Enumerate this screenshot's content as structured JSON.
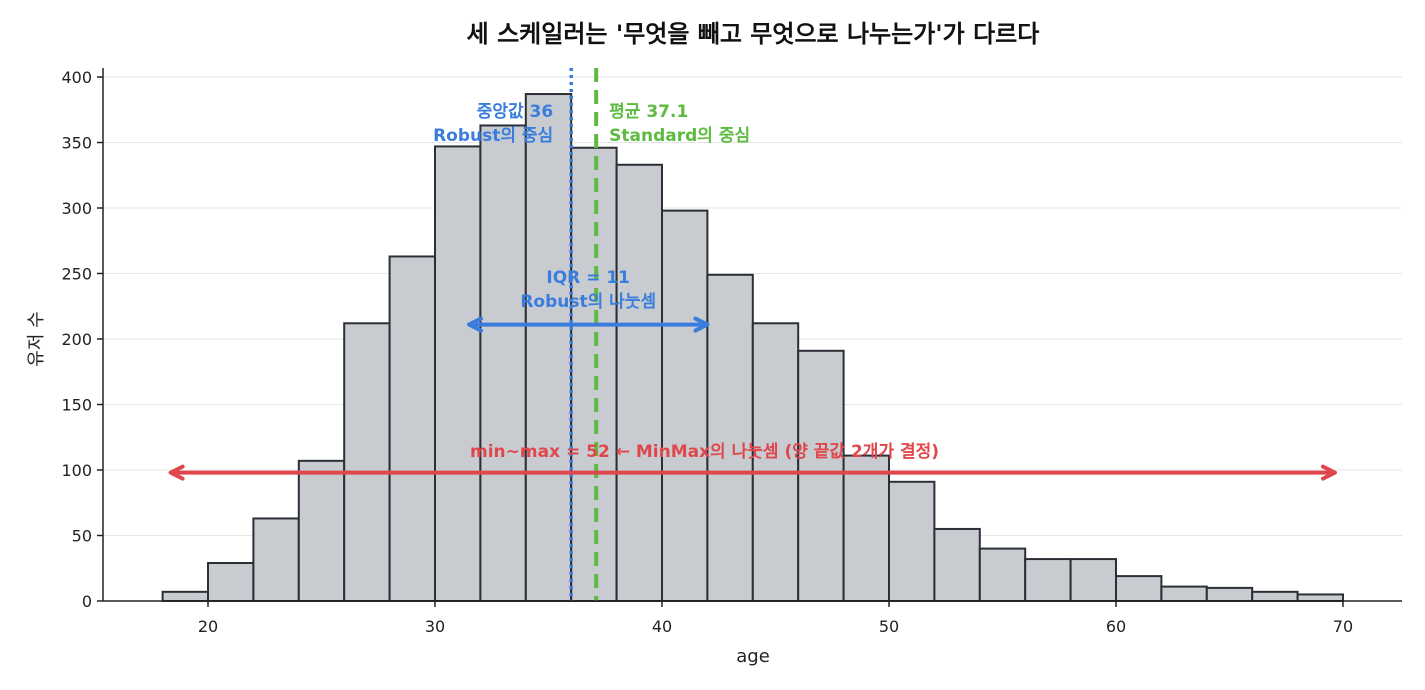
{
  "chart_data": {
    "type": "histogram",
    "title": "세 스케일러는 '무엇을 빼고 무엇으로 나누는가'가 다르다",
    "xlabel": "age",
    "ylabel": "유저 수",
    "xlim": [
      15,
      72.5
    ],
    "ylim": [
      0,
      405
    ],
    "x_ticks": [
      20,
      30,
      40,
      50,
      60,
      70
    ],
    "y_ticks": [
      0,
      50,
      100,
      150,
      200,
      250,
      300,
      350,
      400
    ],
    "grid": "horizontal",
    "bins": [
      {
        "start": 18,
        "end": 20,
        "count": 7
      },
      {
        "start": 20,
        "end": 22,
        "count": 29
      },
      {
        "start": 22,
        "end": 24,
        "count": 63
      },
      {
        "start": 24,
        "end": 26,
        "count": 107
      },
      {
        "start": 26,
        "end": 28,
        "count": 212
      },
      {
        "start": 28,
        "end": 30,
        "count": 263
      },
      {
        "start": 30,
        "end": 32,
        "count": 347
      },
      {
        "start": 32,
        "end": 34,
        "count": 363
      },
      {
        "start": 34,
        "end": 36,
        "count": 387
      },
      {
        "start": 36,
        "end": 38,
        "count": 346
      },
      {
        "start": 38,
        "end": 40,
        "count": 333
      },
      {
        "start": 40,
        "end": 42,
        "count": 298
      },
      {
        "start": 42,
        "end": 44,
        "count": 249
      },
      {
        "start": 44,
        "end": 46,
        "count": 212
      },
      {
        "start": 46,
        "end": 48,
        "count": 191
      },
      {
        "start": 48,
        "end": 50,
        "count": 111
      },
      {
        "start": 50,
        "end": 52,
        "count": 91
      },
      {
        "start": 52,
        "end": 54,
        "count": 55
      },
      {
        "start": 54,
        "end": 56,
        "count": 40
      },
      {
        "start": 56,
        "end": 58,
        "count": 32
      },
      {
        "start": 58,
        "end": 60,
        "count": 32
      },
      {
        "start": 60,
        "end": 62,
        "count": 19
      },
      {
        "start": 62,
        "end": 64,
        "count": 11
      },
      {
        "start": 64,
        "end": 66,
        "count": 10
      },
      {
        "start": 66,
        "end": 68,
        "count": 7
      },
      {
        "start": 68,
        "end": 70,
        "count": 5
      }
    ],
    "median": {
      "value": 36,
      "label_1": "중앙값 36",
      "label_2": "Robust의 중심",
      "color": "#3b7ddd"
    },
    "mean": {
      "value": 37.1,
      "label_1": "평균 37.1",
      "label_2": "Standard의 중심",
      "color": "#5dbb3f"
    },
    "iqr": {
      "from": 31.5,
      "to": 42,
      "y": 211,
      "label_1": "IQR = 11",
      "label_2": "Robust의 나눗셈",
      "color": "#3b7ddd"
    },
    "range": {
      "from": 18,
      "to": 70,
      "y": 98,
      "label": "min~max = 52  ← MinMax의 나눗셈 (양 끝값 2개가 결정)",
      "color": "#e0474c"
    },
    "bar_color": "#c8ccd1",
    "bar_edge_color": "#2b2f36"
  }
}
